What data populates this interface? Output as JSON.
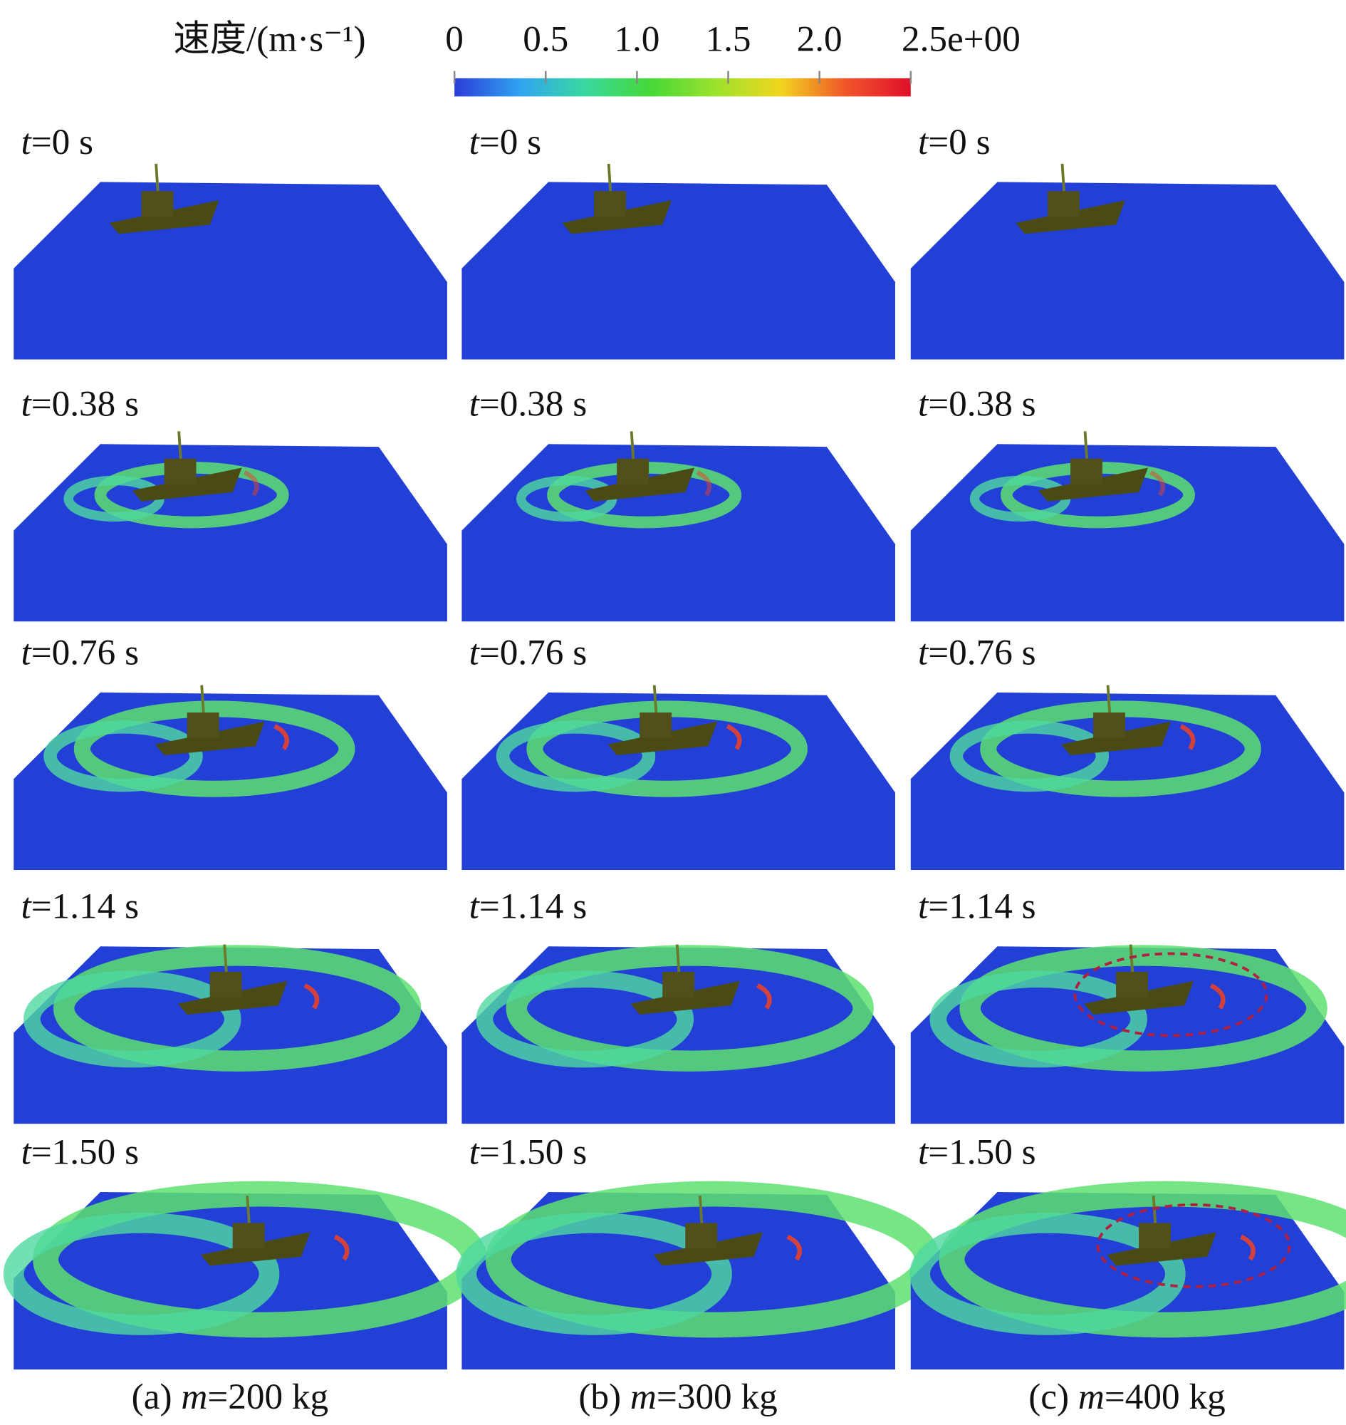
{
  "colorbar": {
    "title": "速度/(m·s⁻¹)",
    "range": [
      0,
      2.5
    ],
    "ticks": [
      0,
      0.5,
      {
        "value": 1,
        "label": "1.0"
      },
      1.5,
      {
        "value": 2,
        "label": "2.0"
      },
      {
        "value": 2.5,
        "label": "2.5e+00"
      }
    ],
    "colors": [
      "#2b3cd8",
      "#2fa3f0",
      "#38d8a0",
      "#46d838",
      "#9be22c",
      "#f2d51e",
      "#f0562a",
      "#e0102a"
    ]
  },
  "rows": [
    "t=0 s",
    "t=0.38 s",
    "t=0.76 s",
    "t=1.14 s",
    "t=1.50 s"
  ],
  "columns": [
    "(a) m=200 kg",
    "(b) m=300 kg",
    "(c) m=400 kg"
  ]
}
